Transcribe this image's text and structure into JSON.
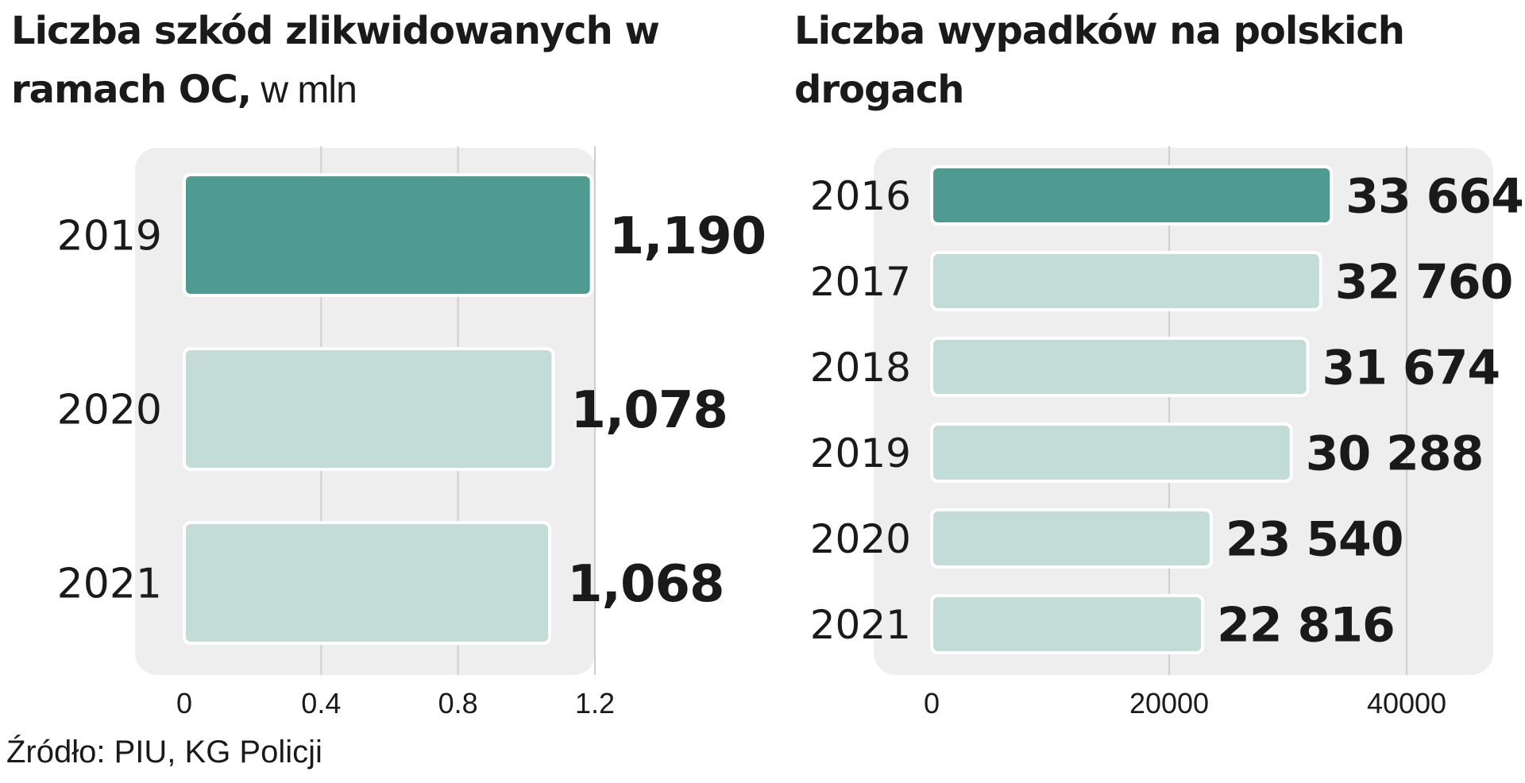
{
  "charts": [
    {
      "title_bold": "Liczba szkód zlikwidowanych w ramach OC,",
      "title_unit": " w mln"
    },
    {
      "title_bold": "Liczba wypadków na polskich drogach",
      "title_unit": ""
    }
  ],
  "source": "Źródło: PIU, KG Policji",
  "colors": {
    "highlight": "#4f9b91",
    "bar": "#c3dcd7",
    "panel": "#eeeeee",
    "grid": "#cfcfcf",
    "text": "#1a1a1a"
  },
  "chart_data": [
    {
      "type": "bar",
      "orientation": "horizontal",
      "categories": [
        "2019",
        "2020",
        "2021"
      ],
      "values": [
        1.19,
        1.078,
        1.068
      ],
      "value_labels": [
        "1,190",
        "1,078",
        "1,068"
      ],
      "highlight_index": 0,
      "xlim": [
        0,
        1.2
      ],
      "xticks": [
        0,
        0.4,
        0.8,
        1.2
      ],
      "xtick_labels": [
        "0",
        "0.4",
        "0.8",
        "1.2"
      ],
      "grid": true
    },
    {
      "type": "bar",
      "orientation": "horizontal",
      "categories": [
        "2016",
        "2017",
        "2018",
        "2019",
        "2020",
        "2021"
      ],
      "values": [
        33664,
        32760,
        31674,
        30288,
        23540,
        22816
      ],
      "value_labels": [
        "33 664",
        "32 760",
        "31 674",
        "30 288",
        "23 540",
        "22 816"
      ],
      "highlight_index": 0,
      "xlim": [
        0,
        40000
      ],
      "xticks": [
        0,
        20000,
        40000
      ],
      "xtick_labels": [
        "0",
        "20000",
        "40000"
      ],
      "grid": true
    }
  ]
}
